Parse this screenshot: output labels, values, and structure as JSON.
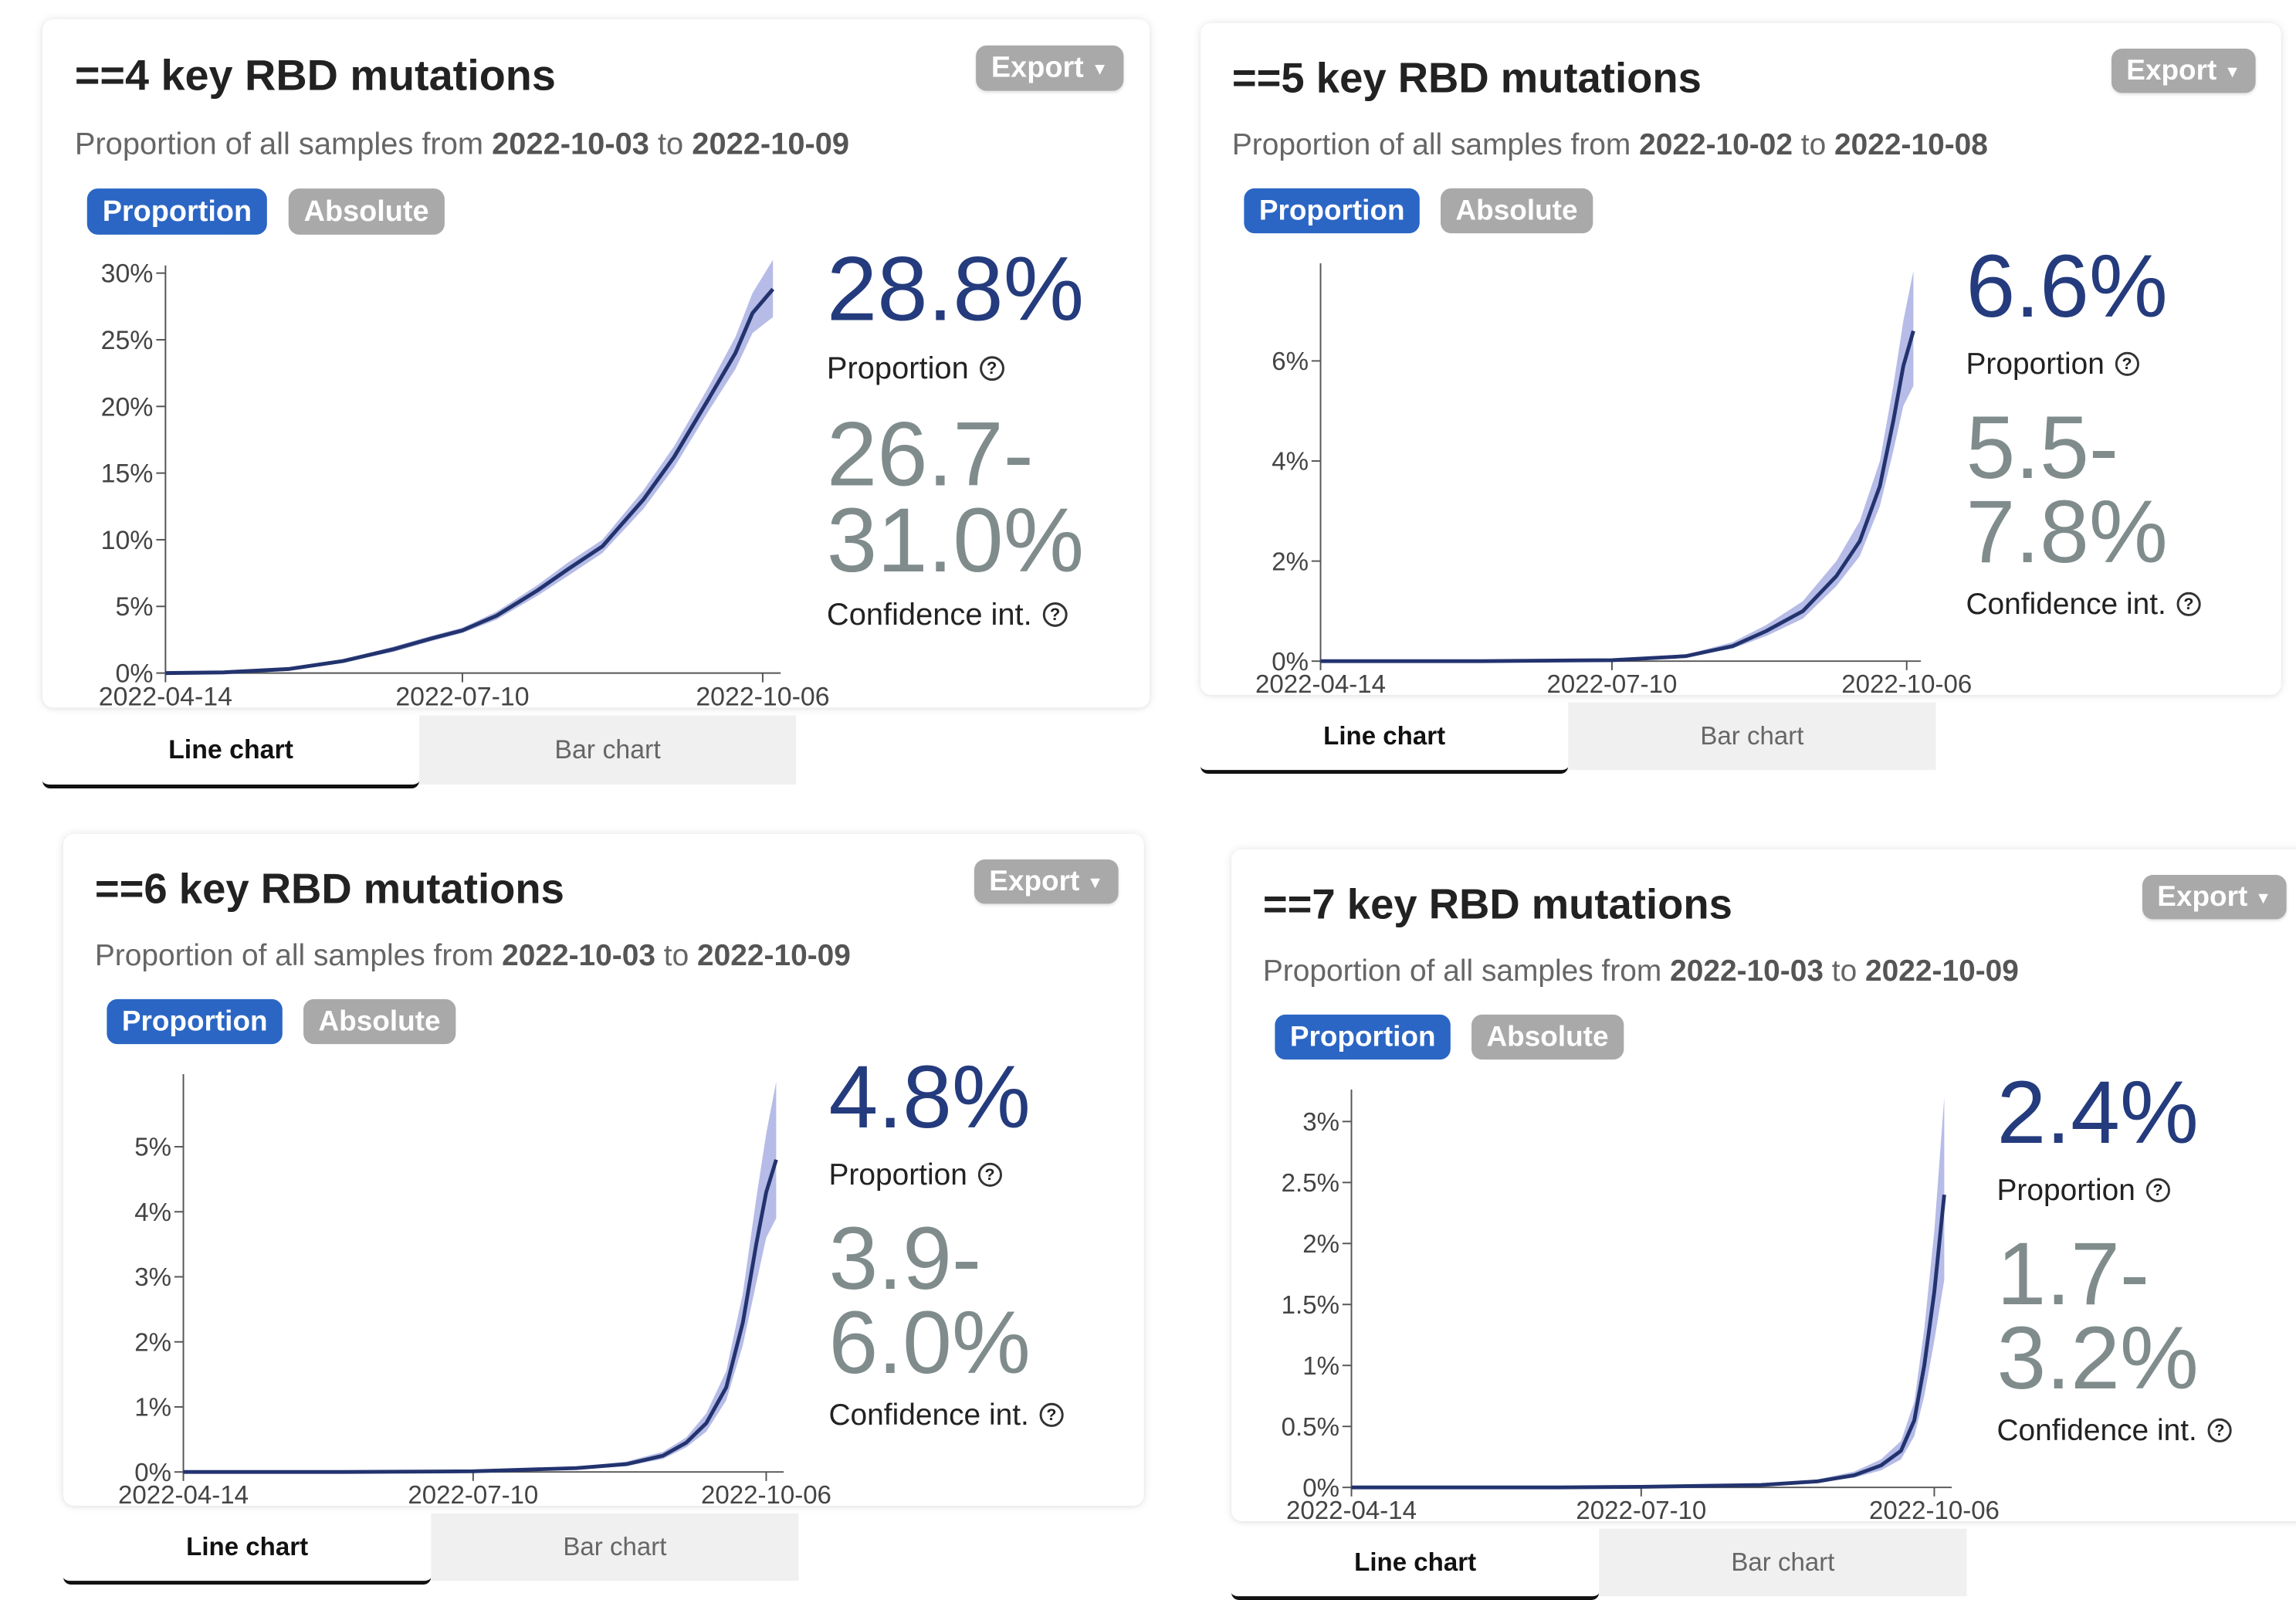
{
  "export_label": "Export",
  "subtitle_prefix": "Proportion of all samples from",
  "subtitle_join": "to",
  "toggle": {
    "proportion": "Proportion",
    "absolute": "Absolute"
  },
  "proportion_label": "Proportion",
  "ci_label": "Confidence int.",
  "tabs": {
    "line": "Line chart",
    "bar": "Bar chart"
  },
  "cards": [
    {
      "title": "==4 key RBD mutations",
      "date_from": "2022-10-03",
      "date_to": "2022-10-09",
      "value": "28.8%",
      "ci_low": "26.7-",
      "ci_high": "31.0%"
    },
    {
      "title": "==5 key RBD mutations",
      "date_from": "2022-10-02",
      "date_to": "2022-10-08",
      "value": "6.6%",
      "ci_low": "5.5-",
      "ci_high": "7.8%"
    },
    {
      "title": "==6 key RBD mutations",
      "date_from": "2022-10-03",
      "date_to": "2022-10-09",
      "value": "4.8%",
      "ci_low": "3.9-",
      "ci_high": "6.0%"
    },
    {
      "title": "==7 key RBD mutations",
      "date_from": "2022-10-03",
      "date_to": "2022-10-09",
      "value": "2.4%",
      "ci_low": "1.7-",
      "ci_high": "3.2%"
    }
  ],
  "chart_data": [
    {
      "type": "line",
      "x_ticks": [
        "2022-04-14",
        "2022-07-10",
        "2022-10-06"
      ],
      "xlim": [
        "2022-04-14",
        "2022-10-09"
      ],
      "ylim": [
        0,
        30
      ],
      "y_ticks": [
        "0%",
        "5%",
        "10%",
        "15%",
        "20%",
        "25%",
        "30%"
      ],
      "y_tick_values": [
        0,
        5,
        10,
        15,
        20,
        25,
        30
      ],
      "series": [
        {
          "x": [
            "2022-04-14",
            "2022-05-01",
            "2022-05-20",
            "2022-06-05",
            "2022-06-20",
            "2022-07-01",
            "2022-07-10",
            "2022-07-20",
            "2022-08-01",
            "2022-08-10",
            "2022-08-20",
            "2022-09-01",
            "2022-09-10",
            "2022-09-20",
            "2022-09-28",
            "2022-10-03",
            "2022-10-09"
          ],
          "values": [
            0,
            0.05,
            0.3,
            0.9,
            1.8,
            2.6,
            3.2,
            4.3,
            6.2,
            7.8,
            9.5,
            13.0,
            16.2,
            20.5,
            24.0,
            27.0,
            28.8
          ],
          "lower": [
            0,
            0.03,
            0.25,
            0.8,
            1.6,
            2.4,
            3.0,
            4.0,
            5.8,
            7.3,
            9.0,
            12.3,
            15.4,
            19.6,
            22.8,
            25.5,
            26.7
          ],
          "upper": [
            0,
            0.08,
            0.35,
            1.0,
            2.0,
            2.8,
            3.4,
            4.6,
            6.6,
            8.3,
            10.0,
            13.7,
            17.0,
            21.4,
            25.2,
            28.5,
            31.0
          ]
        }
      ]
    },
    {
      "type": "line",
      "x_ticks": [
        "2022-04-14",
        "2022-07-10",
        "2022-10-06"
      ],
      "xlim": [
        "2022-04-14",
        "2022-10-08"
      ],
      "ylim": [
        0,
        7.8
      ],
      "y_ticks": [
        "0%",
        "2%",
        "4%",
        "6%"
      ],
      "y_tick_values": [
        0,
        2,
        4,
        6
      ],
      "series": [
        {
          "x": [
            "2022-04-14",
            "2022-06-01",
            "2022-07-10",
            "2022-08-01",
            "2022-08-15",
            "2022-08-25",
            "2022-09-05",
            "2022-09-15",
            "2022-09-22",
            "2022-09-28",
            "2022-10-02",
            "2022-10-05",
            "2022-10-08"
          ],
          "values": [
            0,
            0,
            0.02,
            0.1,
            0.3,
            0.6,
            1.0,
            1.7,
            2.4,
            3.5,
            4.8,
            5.9,
            6.6
          ],
          "lower": [
            0,
            0,
            0.01,
            0.08,
            0.25,
            0.5,
            0.85,
            1.5,
            2.1,
            3.1,
            4.2,
            5.1,
            5.5
          ],
          "upper": [
            0,
            0,
            0.03,
            0.13,
            0.38,
            0.72,
            1.2,
            2.0,
            2.8,
            4.0,
            5.5,
            6.8,
            7.8
          ]
        }
      ]
    },
    {
      "type": "line",
      "x_ticks": [
        "2022-04-14",
        "2022-07-10",
        "2022-10-06"
      ],
      "xlim": [
        "2022-04-14",
        "2022-10-09"
      ],
      "ylim": [
        0,
        6.0
      ],
      "y_ticks": [
        "0%",
        "1%",
        "2%",
        "3%",
        "4%",
        "5%"
      ],
      "y_tick_values": [
        0,
        1,
        2,
        3,
        4,
        5
      ],
      "series": [
        {
          "x": [
            "2022-04-14",
            "2022-06-01",
            "2022-07-10",
            "2022-08-10",
            "2022-08-25",
            "2022-09-05",
            "2022-09-12",
            "2022-09-18",
            "2022-09-24",
            "2022-09-29",
            "2022-10-03",
            "2022-10-06",
            "2022-10-09"
          ],
          "values": [
            0,
            0,
            0.01,
            0.06,
            0.12,
            0.25,
            0.45,
            0.75,
            1.3,
            2.3,
            3.5,
            4.3,
            4.8
          ],
          "lower": [
            0,
            0,
            0.005,
            0.04,
            0.09,
            0.2,
            0.38,
            0.62,
            1.1,
            1.95,
            2.9,
            3.6,
            3.9
          ],
          "upper": [
            0,
            0,
            0.015,
            0.08,
            0.16,
            0.31,
            0.53,
            0.9,
            1.55,
            2.75,
            4.2,
            5.2,
            6.0
          ]
        }
      ]
    },
    {
      "type": "line",
      "x_ticks": [
        "2022-04-14",
        "2022-07-10",
        "2022-10-06"
      ],
      "xlim": [
        "2022-04-14",
        "2022-10-09"
      ],
      "ylim": [
        0,
        3.2
      ],
      "y_ticks": [
        "0%",
        "0.5%",
        "1%",
        "1.5%",
        "2%",
        "2.5%",
        "3%"
      ],
      "y_tick_values": [
        0,
        0.5,
        1,
        1.5,
        2,
        2.5,
        3
      ],
      "series": [
        {
          "x": [
            "2022-04-14",
            "2022-06-15",
            "2022-07-10",
            "2022-08-15",
            "2022-09-01",
            "2022-09-12",
            "2022-09-20",
            "2022-09-26",
            "2022-09-30",
            "2022-10-03",
            "2022-10-06",
            "2022-10-09"
          ],
          "values": [
            0,
            0,
            0.005,
            0.02,
            0.05,
            0.1,
            0.18,
            0.3,
            0.55,
            1.0,
            1.6,
            2.4
          ],
          "lower": [
            0,
            0,
            0.003,
            0.015,
            0.04,
            0.08,
            0.14,
            0.23,
            0.42,
            0.75,
            1.2,
            1.7
          ],
          "upper": [
            0,
            0,
            0.008,
            0.027,
            0.065,
            0.13,
            0.23,
            0.38,
            0.7,
            1.3,
            2.1,
            3.2
          ]
        }
      ]
    }
  ]
}
